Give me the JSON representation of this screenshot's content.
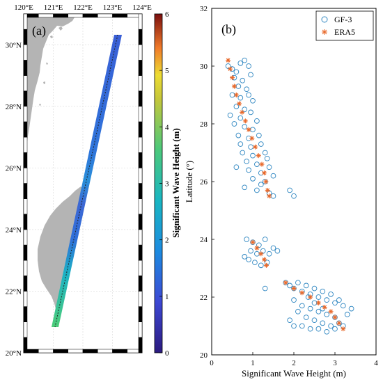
{
  "chart_data": [
    {
      "panel": "(a)",
      "type": "heatmap",
      "xlim": [
        120,
        124
      ],
      "ylim": [
        20,
        31
      ],
      "x_ticks": [
        "120°E",
        "121°E",
        "122°E",
        "123°E",
        "124°E"
      ],
      "y_ticks": [
        "20°N",
        "22°N",
        "24°N",
        "26°N",
        "28°N",
        "30°N"
      ],
      "track": {
        "points": [
          {
            "lon": 123.2,
            "lat": 30.3,
            "swh": 0.6
          },
          {
            "lon": 122.9,
            "lat": 28.5,
            "swh": 0.7
          },
          {
            "lon": 122.55,
            "lat": 26.5,
            "swh": 0.9
          },
          {
            "lon": 122.35,
            "lat": 25.2,
            "swh": 1.1
          },
          {
            "lon": 122.05,
            "lat": 24.0,
            "swh": 0.8
          },
          {
            "lon": 121.7,
            "lat": 22.5,
            "swh": 1.4
          },
          {
            "lon": 121.35,
            "lat": 20.9,
            "swh": 2.1
          }
        ]
      },
      "colorbar": {
        "label": "Significant Wave Height (m)",
        "range": [
          0,
          6
        ],
        "ticks": [
          "0",
          "1",
          "2",
          "3",
          "4",
          "5",
          "6"
        ]
      }
    },
    {
      "panel": "(b)",
      "type": "scatter",
      "xlabel": "Significant Wave Height (m)",
      "ylabel": "Latitude (°)",
      "xlim": [
        0,
        4
      ],
      "ylim": [
        20,
        32
      ],
      "x_ticks": [
        "0",
        "1",
        "2",
        "3",
        "4"
      ],
      "y_ticks": [
        "20",
        "22",
        "24",
        "26",
        "28",
        "30",
        "32"
      ],
      "legend_position": "top-right",
      "series": [
        {
          "name": "GF-3",
          "marker": "circle",
          "color": "#2e86c1",
          "points": [
            [
              0.4,
              30.0
            ],
            [
              0.5,
              29.9
            ],
            [
              0.6,
              29.8
            ],
            [
              0.7,
              30.1
            ],
            [
              0.8,
              30.2
            ],
            [
              0.9,
              30.0
            ],
            [
              0.55,
              29.6
            ],
            [
              0.75,
              29.5
            ],
            [
              0.95,
              29.7
            ],
            [
              0.65,
              29.3
            ],
            [
              0.85,
              29.2
            ],
            [
              0.5,
              29.0
            ],
            [
              0.7,
              28.9
            ],
            [
              0.9,
              29.0
            ],
            [
              1.0,
              28.8
            ],
            [
              0.6,
              28.6
            ],
            [
              0.8,
              28.5
            ],
            [
              0.45,
              28.3
            ],
            [
              0.7,
              28.2
            ],
            [
              0.95,
              28.4
            ],
            [
              1.1,
              28.1
            ],
            [
              0.55,
              28.0
            ],
            [
              0.8,
              27.9
            ],
            [
              1.0,
              27.8
            ],
            [
              0.65,
              27.6
            ],
            [
              0.9,
              27.5
            ],
            [
              1.15,
              27.6
            ],
            [
              0.7,
              27.3
            ],
            [
              0.95,
              27.2
            ],
            [
              1.2,
              27.3
            ],
            [
              0.75,
              27.0
            ],
            [
              1.0,
              26.9
            ],
            [
              1.3,
              27.0
            ],
            [
              0.85,
              26.7
            ],
            [
              1.1,
              26.6
            ],
            [
              1.35,
              26.8
            ],
            [
              0.9,
              26.4
            ],
            [
              1.2,
              26.3
            ],
            [
              1.4,
              26.5
            ],
            [
              1.0,
              26.1
            ],
            [
              1.3,
              26.0
            ],
            [
              1.5,
              26.2
            ],
            [
              0.8,
              25.8
            ],
            [
              1.1,
              25.7
            ],
            [
              1.4,
              25.6
            ],
            [
              1.5,
              25.5
            ],
            [
              1.9,
              25.7
            ],
            [
              2.0,
              25.5
            ],
            [
              1.2,
              25.9
            ],
            [
              0.6,
              26.5
            ],
            [
              0.85,
              24.0
            ],
            [
              1.0,
              23.9
            ],
            [
              1.15,
              23.8
            ],
            [
              1.3,
              24.0
            ],
            [
              0.95,
              23.6
            ],
            [
              1.1,
              23.5
            ],
            [
              1.25,
              23.6
            ],
            [
              1.4,
              23.5
            ],
            [
              0.9,
              23.3
            ],
            [
              1.05,
              23.2
            ],
            [
              1.2,
              23.1
            ],
            [
              1.35,
              23.2
            ],
            [
              1.5,
              23.7
            ],
            [
              1.6,
              23.6
            ],
            [
              0.8,
              23.4
            ],
            [
              1.3,
              22.3
            ],
            [
              1.8,
              22.5
            ],
            [
              1.9,
              22.4
            ],
            [
              2.0,
              22.3
            ],
            [
              2.1,
              22.5
            ],
            [
              2.2,
              22.2
            ],
            [
              2.3,
              22.4
            ],
            [
              2.4,
              22.1
            ],
            [
              2.5,
              22.3
            ],
            [
              2.6,
              22.0
            ],
            [
              2.7,
              22.2
            ],
            [
              2.8,
              21.9
            ],
            [
              2.9,
              22.1
            ],
            [
              3.0,
              21.8
            ],
            [
              3.1,
              21.9
            ],
            [
              3.2,
              21.7
            ],
            [
              3.4,
              21.6
            ],
            [
              2.0,
              21.9
            ],
            [
              2.2,
              21.7
            ],
            [
              2.4,
              21.6
            ],
            [
              2.6,
              21.5
            ],
            [
              2.8,
              21.4
            ],
            [
              3.0,
              21.3
            ],
            [
              2.1,
              21.5
            ],
            [
              2.3,
              21.3
            ],
            [
              2.5,
              21.2
            ],
            [
              2.7,
              21.1
            ],
            [
              2.9,
              21.0
            ],
            [
              3.1,
              21.1
            ],
            [
              2.2,
              21.0
            ],
            [
              2.4,
              20.9
            ],
            [
              2.6,
              20.9
            ],
            [
              2.8,
              20.8
            ],
            [
              3.0,
              20.9
            ],
            [
              3.2,
              21.0
            ],
            [
              1.9,
              21.2
            ],
            [
              2.0,
              21.0
            ],
            [
              2.5,
              21.8
            ],
            [
              2.7,
              21.6
            ],
            [
              3.3,
              21.4
            ],
            [
              2.35,
              22.0
            ]
          ]
        },
        {
          "name": "ERA5",
          "marker": "asterisk",
          "color": "#e8682a",
          "points": [
            [
              0.4,
              30.2
            ],
            [
              0.45,
              29.9
            ],
            [
              0.5,
              29.6
            ],
            [
              0.55,
              29.3
            ],
            [
              0.6,
              29.0
            ],
            [
              0.67,
              28.7
            ],
            [
              0.74,
              28.4
            ],
            [
              0.82,
              28.1
            ],
            [
              0.9,
              27.8
            ],
            [
              0.98,
              27.5
            ],
            [
              1.06,
              27.2
            ],
            [
              1.14,
              26.9
            ],
            [
              1.22,
              26.6
            ],
            [
              1.28,
              26.3
            ],
            [
              1.32,
              26.0
            ],
            [
              1.36,
              25.7
            ],
            [
              1.4,
              25.5
            ],
            [
              1.0,
              23.9
            ],
            [
              1.1,
              23.7
            ],
            [
              1.2,
              23.5
            ],
            [
              1.28,
              23.3
            ],
            [
              1.33,
              23.1
            ],
            [
              1.8,
              22.5
            ],
            [
              2.0,
              22.3
            ],
            [
              2.2,
              22.15
            ],
            [
              2.4,
              22.0
            ],
            [
              2.6,
              21.8
            ],
            [
              2.75,
              21.65
            ],
            [
              2.9,
              21.5
            ],
            [
              3.0,
              21.3
            ],
            [
              3.1,
              21.1
            ],
            [
              3.2,
              20.9
            ]
          ]
        }
      ]
    }
  ],
  "colors": {
    "land": "#b4b4b4",
    "gf3": "#2e86c1",
    "era5": "#e8682a"
  }
}
